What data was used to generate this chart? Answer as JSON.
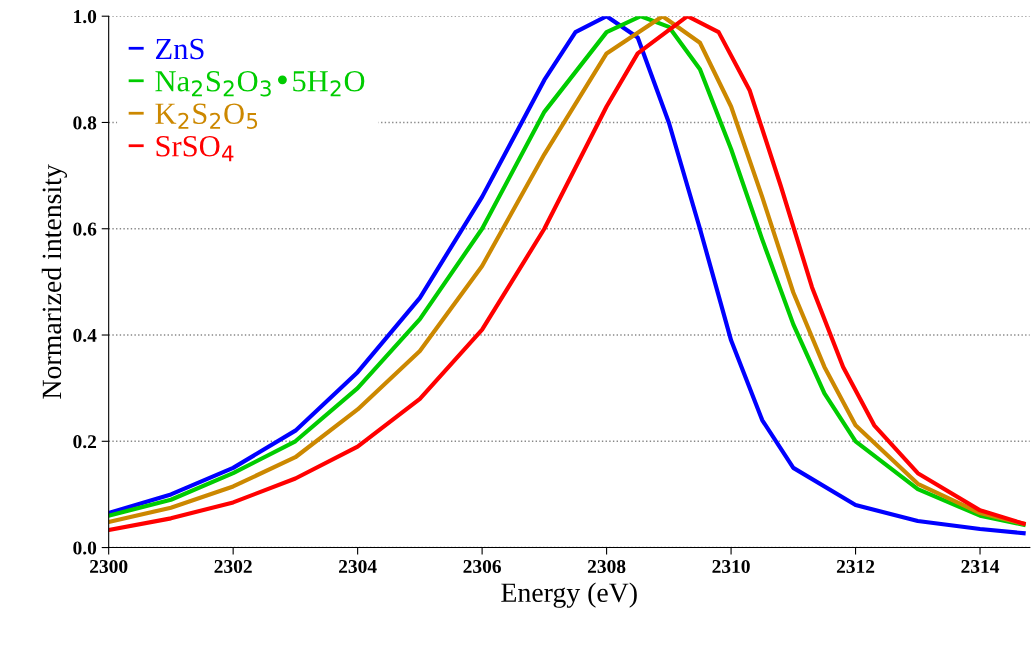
{
  "chart_data": {
    "type": "line",
    "xlabel": "Energy (eV)",
    "ylabel": "Normarized intensity",
    "xlim": [
      2300,
      2314.8
    ],
    "xticks": [
      2300,
      2302,
      2304,
      2306,
      2308,
      2310,
      2312,
      2314
    ],
    "ylim": [
      0,
      1.0
    ],
    "yticks": [
      {
        "value": 0,
        "label": "0.0"
      },
      0.2,
      0.4,
      0.6,
      0.8,
      {
        "value": 1.0,
        "label": "1.0"
      }
    ],
    "grid": "y",
    "legend": "top left",
    "line_style": "solid",
    "marker": "none",
    "series": [
      {
        "name": "ZnS",
        "color": "#0000ff",
        "x": [
          2300,
          2301,
          2302,
          2303,
          2304,
          2305,
          2306,
          2307,
          2307.5,
          2308,
          2308.5,
          2309,
          2309.5,
          2310,
          2310.5,
          2311,
          2312,
          2313,
          2314,
          2314.7
        ],
        "values": [
          0.065,
          0.1,
          0.15,
          0.22,
          0.33,
          0.47,
          0.66,
          0.88,
          0.97,
          1.0,
          0.96,
          0.8,
          0.6,
          0.39,
          0.24,
          0.15,
          0.08,
          0.05,
          0.035,
          0.027
        ]
      },
      {
        "name": "Na$_{2}$S$_{2}$O$_{3}$•5H$_{2}$O",
        "color": "#00cc00",
        "x": [
          2300,
          2301,
          2302,
          2303,
          2304,
          2305,
          2306,
          2307,
          2308,
          2308.55,
          2309,
          2309.5,
          2310,
          2310.5,
          2311,
          2311.5,
          2312,
          2313,
          2314,
          2314.7
        ],
        "values": [
          0.06,
          0.09,
          0.14,
          0.2,
          0.3,
          0.43,
          0.6,
          0.82,
          0.97,
          1.0,
          0.98,
          0.9,
          0.75,
          0.58,
          0.42,
          0.29,
          0.2,
          0.11,
          0.06,
          0.043
        ]
      },
      {
        "name": "K$_{2}$S$_{2}$O$_{5}$",
        "color": "#cc8800",
        "x": [
          2300,
          2301,
          2302,
          2303,
          2304,
          2305,
          2306,
          2307,
          2308,
          2308.9,
          2309.5,
          2310,
          2310.5,
          2311,
          2311.5,
          2312,
          2313,
          2314,
          2314.7
        ],
        "values": [
          0.048,
          0.075,
          0.115,
          0.17,
          0.26,
          0.37,
          0.53,
          0.74,
          0.93,
          1.0,
          0.95,
          0.83,
          0.66,
          0.48,
          0.34,
          0.23,
          0.12,
          0.065,
          0.045
        ]
      },
      {
        "name": "SrSO$_{4}$",
        "color": "#ff0000",
        "x": [
          2300,
          2301,
          2302,
          2303,
          2304,
          2305,
          2306,
          2307,
          2308,
          2308.5,
          2309.3,
          2309.8,
          2310.3,
          2310.8,
          2311.3,
          2311.8,
          2312.3,
          2313,
          2314,
          2314.7
        ],
        "values": [
          0.033,
          0.055,
          0.085,
          0.13,
          0.19,
          0.28,
          0.41,
          0.6,
          0.83,
          0.93,
          1.0,
          0.97,
          0.86,
          0.68,
          0.49,
          0.34,
          0.23,
          0.14,
          0.07,
          0.045
        ]
      }
    ]
  }
}
